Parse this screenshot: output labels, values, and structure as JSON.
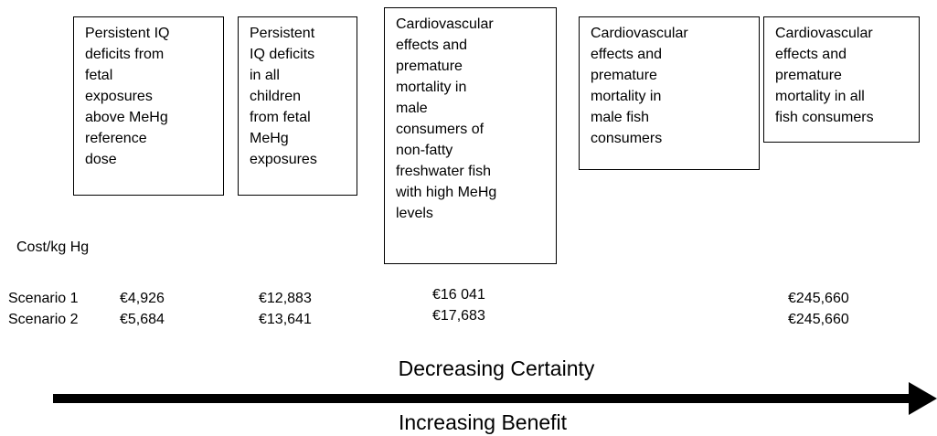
{
  "boxes": [
    {
      "lines": [
        "Persistent IQ",
        "deficits from",
        "fetal",
        "exposures",
        "above MeHg",
        "reference",
        "dose"
      ]
    },
    {
      "lines": [
        "Persistent",
        "IQ deficits",
        "in all",
        "children",
        "from fetal",
        "MeHg",
        "exposures"
      ]
    },
    {
      "lines": [
        "Cardiovascular",
        "effects and",
        "premature",
        "mortality in",
        "male",
        "consumers of",
        "non-fatty",
        "freshwater fish",
        "with high MeHg",
        "levels"
      ]
    },
    {
      "lines": [
        "Cardiovascular",
        "effects and",
        "premature",
        "mortality in",
        "male fish",
        "consumers"
      ]
    },
    {
      "lines": [
        "Cardiovascular",
        "effects and",
        "premature",
        "mortality in all",
        "fish consumers"
      ]
    }
  ],
  "cost_label": "Cost/kg Hg",
  "scenarios": [
    {
      "label": "Scenario 1",
      "values": [
        "€4,926",
        "€12,883",
        "€16 041",
        "€245,660"
      ]
    },
    {
      "label": "Scenario 2",
      "values": [
        "€5,684",
        "€13,641",
        "€17,683",
        "€245,660"
      ]
    }
  ],
  "certainty_label": "Decreasing Certainty",
  "benefit_label": "Increasing Benefit"
}
